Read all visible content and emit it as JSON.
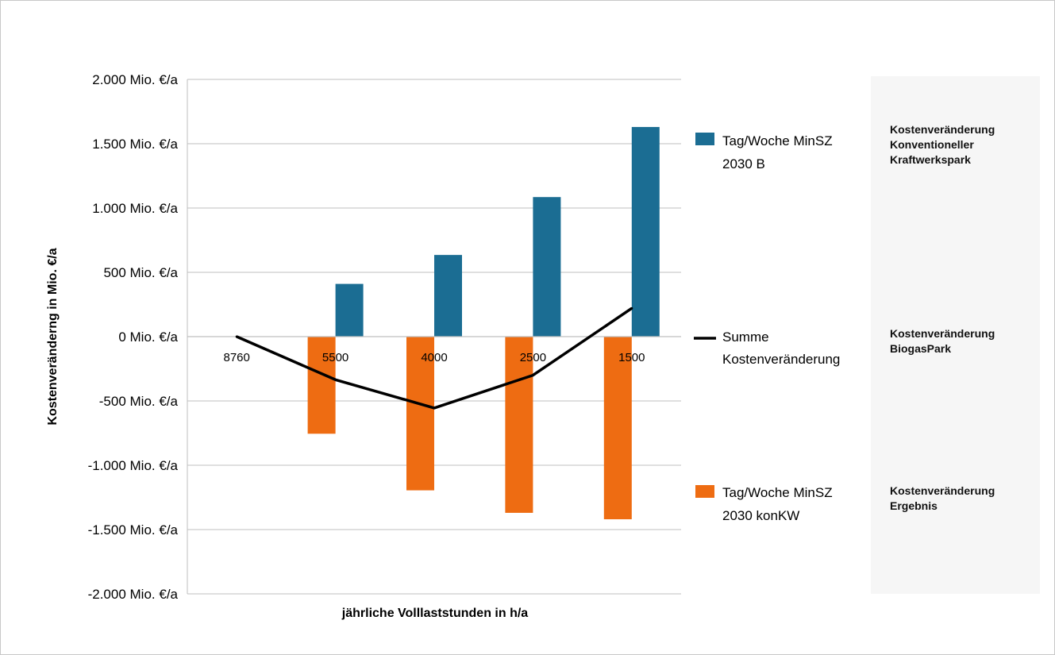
{
  "chart_data": {
    "type": "bar",
    "xlabel": "jährliche Volllaststunden in h/a",
    "ylabel": "Kostenveränderng in Mio. €/a",
    "categories": [
      "8760",
      "5500",
      "4000",
      "2500",
      "1500"
    ],
    "ylim": [
      -2000,
      2000
    ],
    "yticks": [
      {
        "value": 2000,
        "label": "2.000 Mio. €/a"
      },
      {
        "value": 1500,
        "label": "1.500 Mio. €/a"
      },
      {
        "value": 1000,
        "label": "1.000 Mio. €/a"
      },
      {
        "value": 500,
        "label": "500 Mio. €/a"
      },
      {
        "value": 0,
        "label": "0 Mio. €/a"
      },
      {
        "value": -500,
        "label": "-500 Mio. €/a"
      },
      {
        "value": -1000,
        "label": "-1.000 Mio. €/a"
      },
      {
        "value": -1500,
        "label": "-1.500 Mio. €/a"
      },
      {
        "value": -2000,
        "label": "-2.000 Mio. €/a"
      }
    ],
    "grid": true,
    "legend_position": "right",
    "series": [
      {
        "name": "Tag/Woche MinSZ 2030 B",
        "type": "bar",
        "color": "#1b6d93",
        "values": [
          0,
          410,
          635,
          1085,
          1630
        ]
      },
      {
        "name": "Summe Kostenveränderung",
        "type": "line",
        "color": "#000000",
        "values": [
          0,
          -335,
          -555,
          -300,
          220
        ]
      },
      {
        "name": "Tag/Woche MinSZ 2030 konKW",
        "type": "bar",
        "color": "#ee6c12",
        "values": [
          0,
          -755,
          -1195,
          -1370,
          -1420
        ]
      }
    ]
  },
  "legend": [
    {
      "line1": "Tag/Woche MinSZ",
      "line2": "2030 B",
      "color": "#1b6d93",
      "shape": "square"
    },
    {
      "line1": "Summe",
      "line2": "Kostenveränderung",
      "color": "#000000",
      "shape": "line"
    },
    {
      "line1": "Tag/Woche MinSZ",
      "line2": "2030 konKW",
      "color": "#ee6c12",
      "shape": "square"
    }
  ],
  "notes": [
    {
      "text": "Kostenveränderung\nKonventioneller\nKraftwerkspark"
    },
    {
      "text": "Kostenveränderung\nBiogasPark"
    },
    {
      "text": "Kostenveränderung\nErgebnis"
    }
  ]
}
